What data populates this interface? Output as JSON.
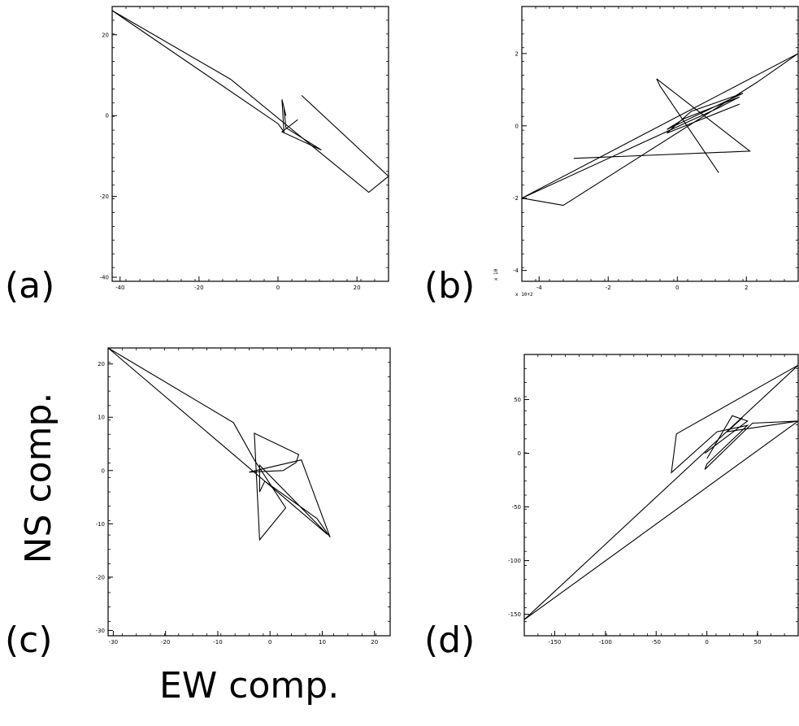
{
  "figure": {
    "ylabel": "NS comp.",
    "xlabel": "EW comp."
  },
  "chart_data": [
    {
      "type": "line",
      "panel_label": "(a)",
      "xlim": [
        -42,
        28
      ],
      "ylim": [
        -41,
        27
      ],
      "xticks": [
        -40,
        -20,
        0,
        20
      ],
      "yticks": [
        -40,
        -20,
        0,
        20
      ],
      "xtick_labels": [
        "-40",
        "-20",
        "0",
        "20"
      ],
      "ytick_labels": [
        "-40",
        "-20",
        "0",
        "20"
      ],
      "multiplier_x": "",
      "multiplier_y": "",
      "series": [
        {
          "x": [
            -42,
            -12,
            23,
            28,
            6
          ],
          "y": [
            26,
            9,
            -19,
            -15,
            5
          ]
        },
        {
          "x": [
            -42,
            0,
            1.5,
            1,
            2,
            1.5,
            2,
            11,
            1,
            5
          ],
          "y": [
            26,
            -2,
            -4,
            4,
            0,
            2,
            -3,
            -8.5,
            -4,
            -1
          ]
        }
      ]
    },
    {
      "type": "line",
      "panel_label": "(b)",
      "xlim": [
        -4.5,
        3.5
      ],
      "ylim": [
        -4.3,
        3.3
      ],
      "xticks": [
        -4,
        -2,
        0,
        2
      ],
      "yticks": [
        -4,
        -2,
        0,
        2
      ],
      "xtick_labels": [
        "-4",
        "-2",
        "0",
        "2"
      ],
      "ytick_labels": [
        "-4",
        "-2",
        "0",
        "2"
      ],
      "multiplier_x": "x 10+2",
      "multiplier_y": "x 10",
      "series": [
        {
          "x": [
            -4.5,
            -3.3,
            2.3,
            3.5,
            -4.5,
            1.2,
            1.8,
            0.2,
            -0.3,
            1.9,
            0.4,
            -0.3,
            1.8
          ],
          "y": [
            -2.0,
            -2.2,
            1.2,
            2.0,
            -2.0,
            0.5,
            0.8,
            0.2,
            -0.1,
            0.9,
            0.4,
            -0.2,
            0.6
          ]
        },
        {
          "x": [
            -3.0,
            2.1,
            -0.6,
            -0.5,
            1.2
          ],
          "y": [
            -0.9,
            -0.7,
            1.3,
            1.1,
            -1.3
          ]
        }
      ]
    },
    {
      "type": "line",
      "panel_label": "(c)",
      "xlim": [
        -31,
        23
      ],
      "ylim": [
        -31,
        23
      ],
      "xticks": [
        -30,
        -20,
        -10,
        0,
        10,
        20
      ],
      "yticks": [
        -30,
        -20,
        -10,
        0,
        10,
        20
      ],
      "xtick_labels": [
        "-30",
        "-20",
        "-10",
        "0",
        "10",
        "20"
      ],
      "ytick_labels": [
        "-30",
        "-20",
        "-10",
        "0",
        "10",
        "20"
      ],
      "multiplier_x": "",
      "multiplier_y": "",
      "series": [
        {
          "x": [
            -31,
            -7,
            -3,
            3,
            -2,
            -3,
            5.5,
            5,
            2.5,
            -4,
            6,
            11.5,
            9,
            -1,
            -2,
            -2,
            11,
            -31
          ],
          "y": [
            23,
            9,
            2,
            -7,
            -13,
            7,
            3,
            1.5,
            0,
            -0.3,
            2,
            -12.5,
            -9,
            -2,
            -4,
            1,
            -12,
            23
          ]
        }
      ]
    },
    {
      "type": "line",
      "panel_label": "(d)",
      "xlim": [
        -180,
        90
      ],
      "ylim": [
        -170,
        92
      ],
      "xticks": [
        -150,
        -100,
        -50,
        0,
        50
      ],
      "yticks": [
        -150,
        -100,
        -50,
        0,
        50
      ],
      "xtick_labels": [
        "-150",
        "-100",
        "-50",
        "0",
        "50"
      ],
      "ytick_labels": [
        "-150",
        "-100",
        "-50",
        "0",
        "50"
      ],
      "multiplier_x": "",
      "multiplier_y": "",
      "series": [
        {
          "x": [
            -180,
            90,
            -30,
            -35,
            10,
            40,
            0,
            -2,
            45,
            90,
            20,
            35
          ],
          "y": [
            -155,
            82,
            18,
            -18,
            20,
            26,
            -10,
            -15,
            28,
            30,
            20,
            33
          ]
        },
        {
          "x": [
            -180,
            90
          ],
          "y": [
            -155,
            30
          ]
        },
        {
          "x": [
            0,
            25,
            40,
            -2
          ],
          "y": [
            -5,
            35,
            30,
            0
          ]
        }
      ]
    }
  ]
}
